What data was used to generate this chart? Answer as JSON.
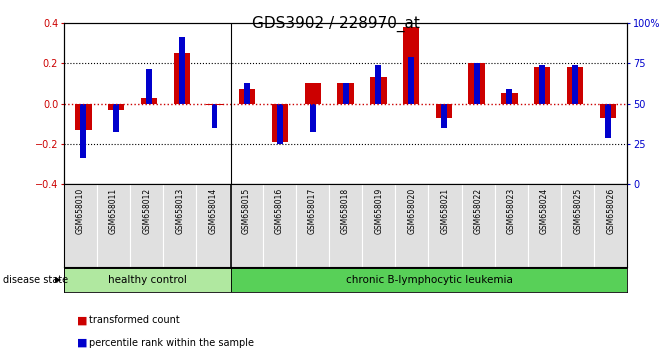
{
  "title": "GDS3902 / 228970_at",
  "samples": [
    "GSM658010",
    "GSM658011",
    "GSM658012",
    "GSM658013",
    "GSM658014",
    "GSM658015",
    "GSM658016",
    "GSM658017",
    "GSM658018",
    "GSM658019",
    "GSM658020",
    "GSM658021",
    "GSM658022",
    "GSM658023",
    "GSM658024",
    "GSM658025",
    "GSM658026"
  ],
  "red_values": [
    -0.13,
    -0.03,
    0.03,
    0.25,
    -0.005,
    0.07,
    -0.19,
    0.1,
    0.1,
    0.13,
    0.38,
    -0.07,
    0.2,
    0.05,
    0.18,
    0.18,
    -0.07
  ],
  "blue_values": [
    -0.27,
    -0.14,
    0.17,
    0.33,
    -0.12,
    0.1,
    -0.2,
    -0.14,
    0.1,
    0.19,
    0.23,
    -0.12,
    0.2,
    0.07,
    0.19,
    0.19,
    -0.17
  ],
  "group_split": 5,
  "group1_label": "healthy control",
  "group2_label": "chronic B-lymphocytic leukemia",
  "group1_color": "#b0e8a0",
  "group2_color": "#58d058",
  "disease_state_label": "disease state",
  "red_color": "#cc0000",
  "blue_color": "#0000cc",
  "ylim": [
    -0.4,
    0.4
  ],
  "y2lim": [
    0,
    100
  ],
  "yticks_left": [
    -0.4,
    -0.2,
    0.0,
    0.2,
    0.4
  ],
  "yticks_right": [
    0,
    25,
    50,
    75,
    100
  ],
  "title_fontsize": 11,
  "tick_fontsize": 7,
  "label_fontsize": 5.5,
  "legend_red": "transformed count",
  "legend_blue": "percentile rank within the sample",
  "red_bar_width": 0.5,
  "blue_bar_width": 0.18
}
